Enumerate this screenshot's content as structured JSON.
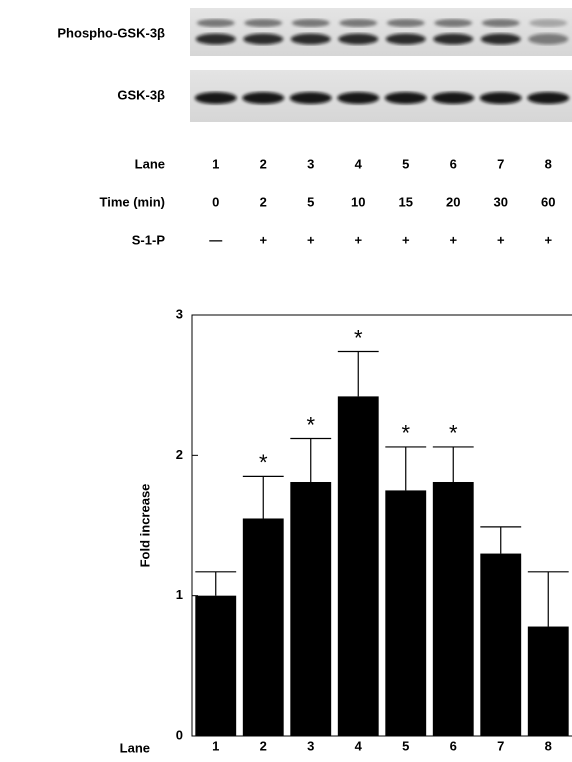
{
  "blot": {
    "rows": [
      "Phospho-GSK-3β",
      "GSK-3β"
    ]
  },
  "lane_table": {
    "rows": [
      {
        "label": "Lane",
        "cells": [
          "1",
          "2",
          "3",
          "4",
          "5",
          "6",
          "7",
          "8"
        ]
      },
      {
        "label": "Time (min)",
        "cells": [
          "0",
          "2",
          "5",
          "10",
          "15",
          "20",
          "30",
          "60"
        ]
      },
      {
        "label": "S-1-P",
        "cells": [
          "—",
          "+",
          "+",
          "+",
          "+",
          "+",
          "+",
          "+"
        ]
      }
    ]
  },
  "chart_data": {
    "type": "bar",
    "y_label": "Fold increase",
    "x_label": "Lane",
    "categories": [
      "1",
      "2",
      "3",
      "4",
      "5",
      "6",
      "7",
      "8"
    ],
    "values": [
      1.0,
      1.55,
      1.81,
      2.42,
      1.75,
      1.81,
      1.3,
      0.78
    ],
    "errors": [
      0.17,
      0.3,
      0.31,
      0.32,
      0.31,
      0.25,
      0.19,
      0.39
    ],
    "significance": [
      null,
      "*",
      "*",
      "*",
      "*",
      "*",
      null,
      null
    ],
    "color": "#000000",
    "ylim": [
      0,
      3
    ],
    "yticks": [
      0,
      1,
      2,
      3
    ],
    "grid": false
  }
}
